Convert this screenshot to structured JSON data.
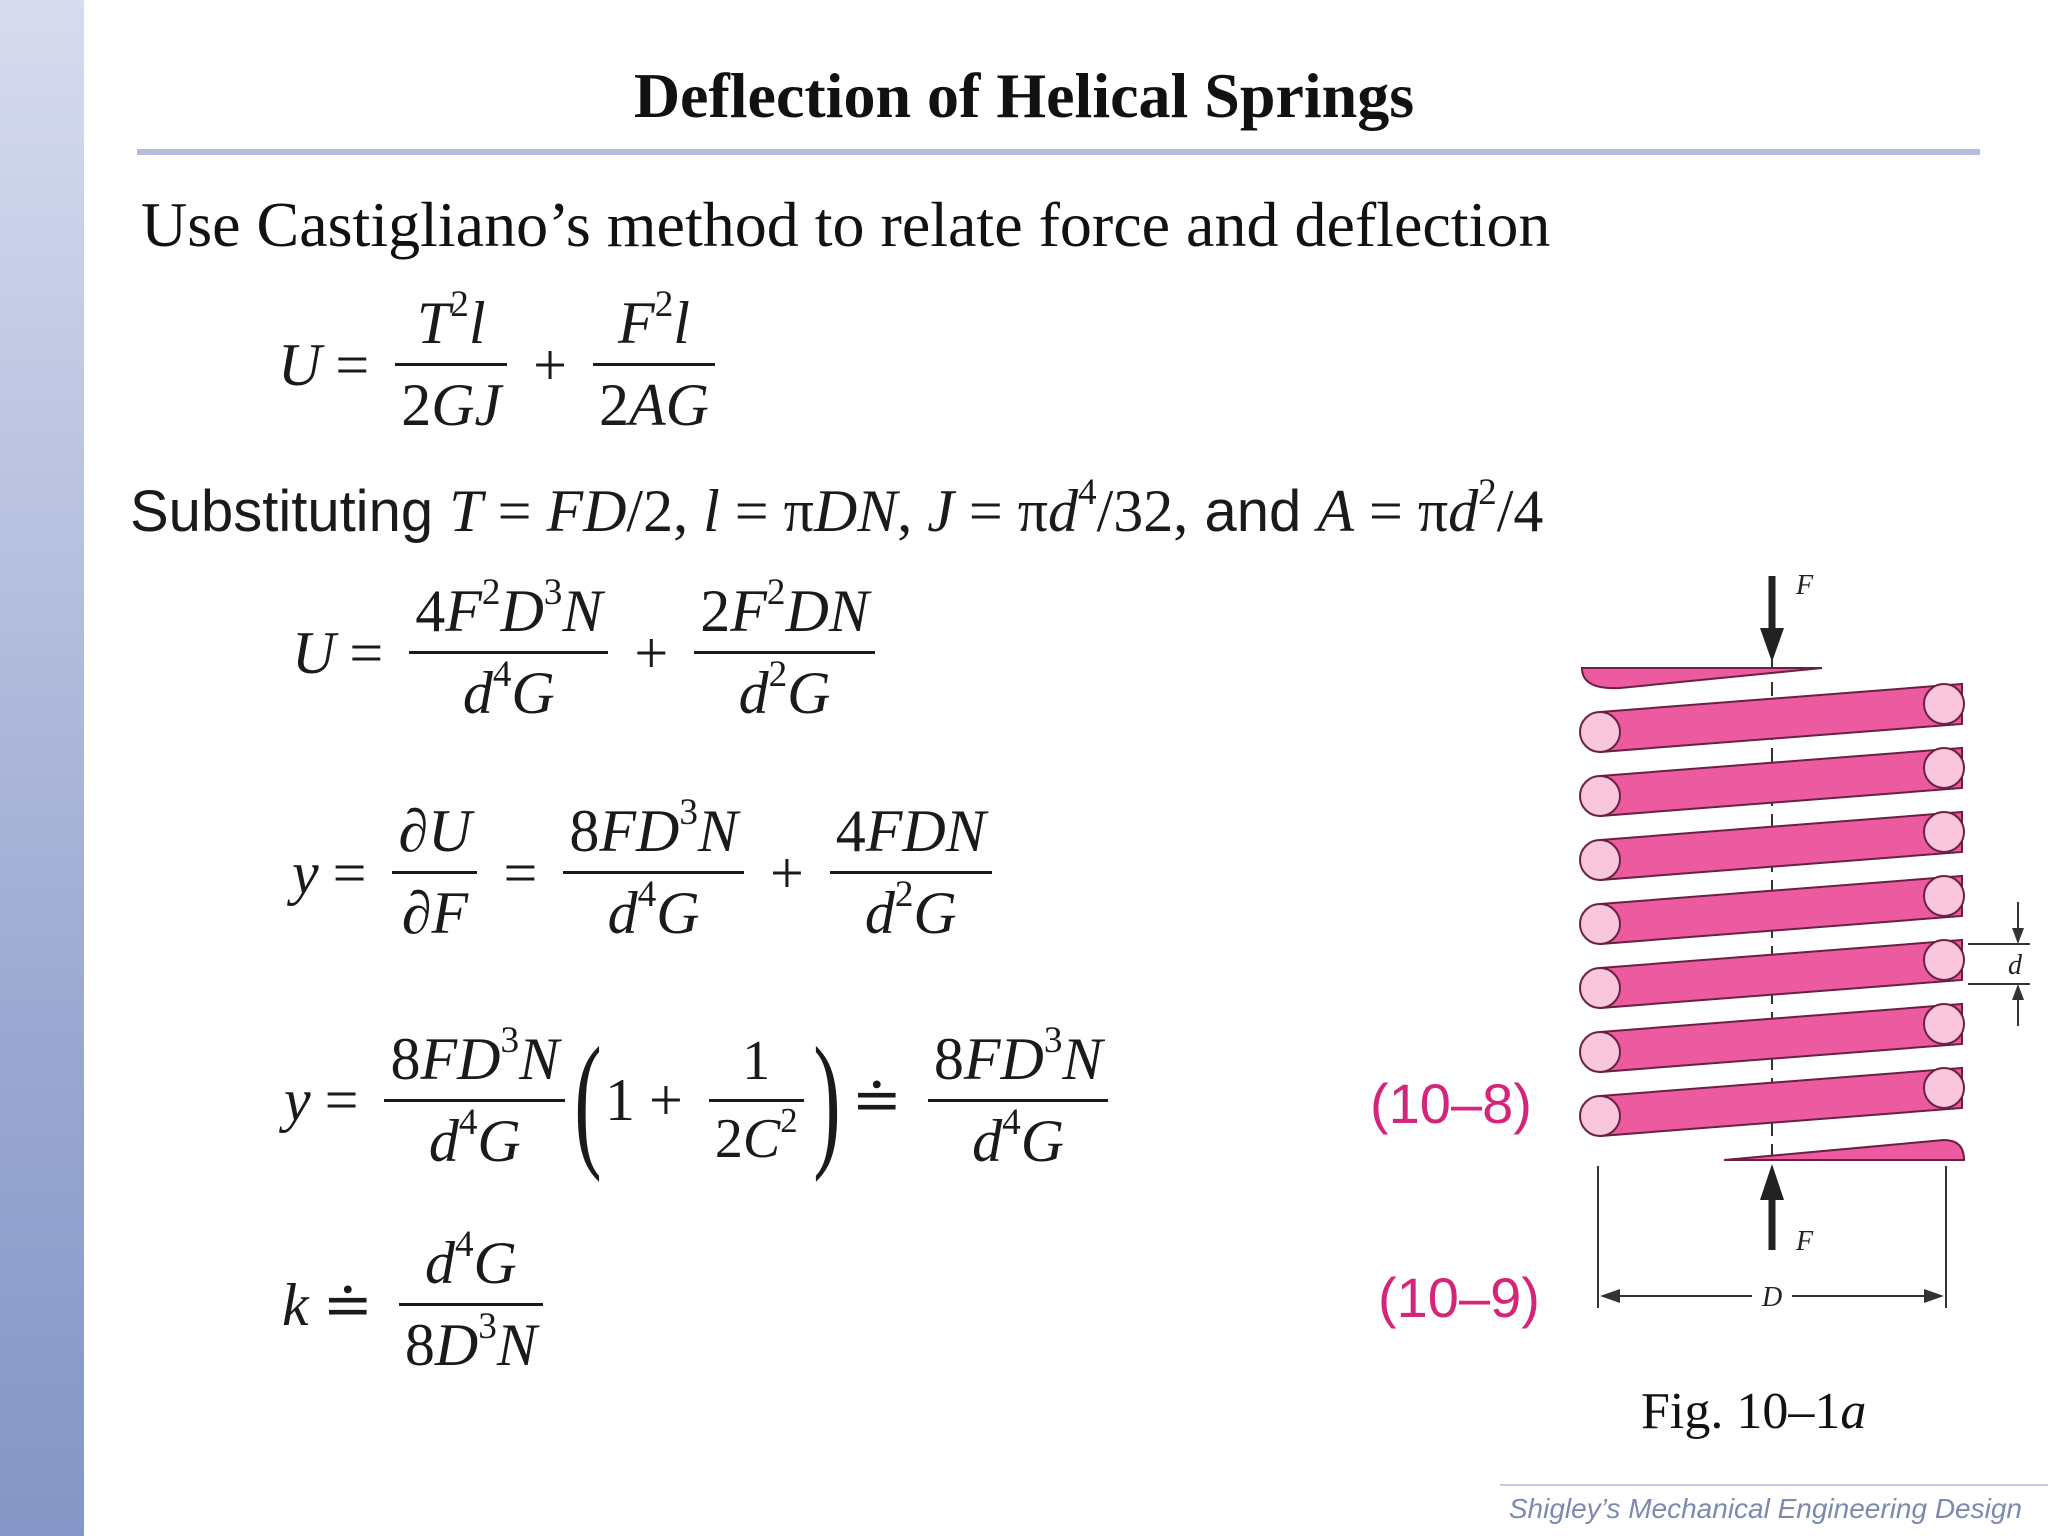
{
  "slide": {
    "title": "Deflection of Helical Springs",
    "subtitle": "Use Castigliano’s method to relate force and deflection",
    "substitution": {
      "lead": "Substituting",
      "and_word": "and"
    },
    "equation_numbers": [
      "(10–8)",
      "(10–9)"
    ],
    "figure_caption_prefix": "Fig. 10–1",
    "figure_caption_suffix": "a",
    "footer": "Shigley’s Mechanical Engineering Design"
  },
  "figure": {
    "force_label_top": "F",
    "force_label_bottom": "F",
    "wire_diameter_label": "d",
    "coil_diameter_label": "D",
    "coil_color": "#ec5aa0",
    "coil_end_color": "#f9c6dc",
    "equation_number_color": "#d4257a"
  }
}
